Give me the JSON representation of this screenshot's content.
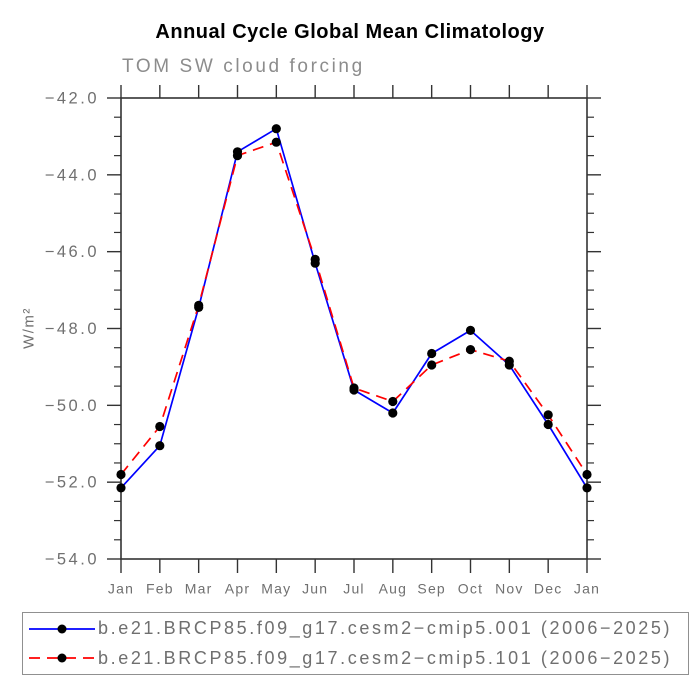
{
  "chart_data": {
    "type": "line",
    "title": "Annual Cycle Global Mean Climatology",
    "subtitle": "TOM SW cloud forcing",
    "ylabel": "W/m²",
    "xlabel": "",
    "categories": [
      "Jan",
      "Feb",
      "Mar",
      "Apr",
      "May",
      "Jun",
      "Jul",
      "Aug",
      "Sep",
      "Oct",
      "Nov",
      "Dec",
      "Jan"
    ],
    "series": [
      {
        "name": "b.e21.BRCP85.f09_g17.cesm2−cmip5.001 (2006−2025)",
        "color": "#0000ff",
        "line_style": "solid",
        "marker": "filled-circle",
        "marker_color": "#000000",
        "values": [
          -52.15,
          -51.05,
          -47.45,
          -43.4,
          -42.8,
          -46.3,
          -49.6,
          -50.2,
          -48.65,
          -48.05,
          -48.95,
          -50.5,
          -52.15
        ]
      },
      {
        "name": "b.e21.BRCP85.f09_g17.cesm2−cmip5.101 (2006−2025)",
        "color": "#ff0000",
        "line_style": "dashed",
        "marker": "filled-circle",
        "marker_color": "#000000",
        "values": [
          -51.8,
          -50.55,
          -47.4,
          -43.5,
          -43.15,
          -46.2,
          -49.55,
          -49.9,
          -48.95,
          -48.55,
          -48.85,
          -50.25,
          -51.8
        ]
      }
    ],
    "ylim": [
      -54.0,
      -42.0
    ],
    "yticks": [
      -42.0,
      -44.0,
      -46.0,
      -48.0,
      -50.0,
      -52.0,
      -54.0
    ],
    "y_tick_labels": [
      "−42.0",
      "−44.0",
      "−46.0",
      "−48.0",
      "−50.0",
      "−52.0",
      "−54.0"
    ],
    "y_minor_tick_step": 0.5,
    "grid": false,
    "legend_position": "bottom",
    "axis_color": "#333333",
    "label_color": "#707070"
  }
}
